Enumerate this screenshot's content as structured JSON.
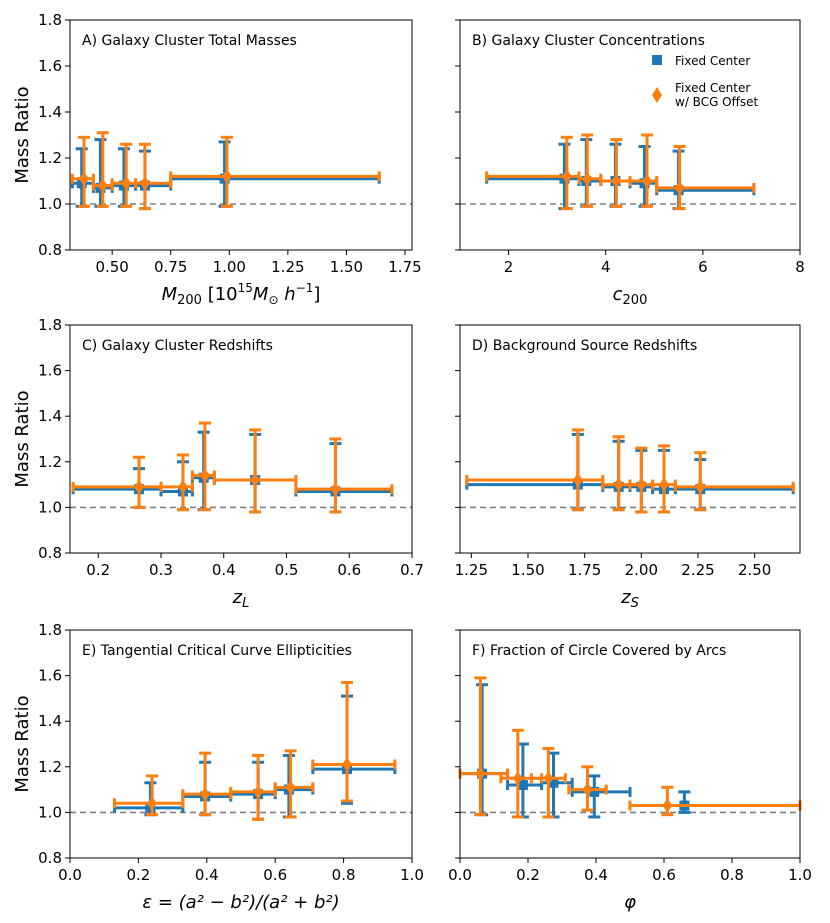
{
  "colors": {
    "fixed": "#1f77b4",
    "offset": "#ff7f0e",
    "refline": "#808080"
  },
  "legend": {
    "fixed_label": "Fixed Center",
    "offset_label_1": "Fixed Center",
    "offset_label_2": "w/ BCG Offset"
  },
  "ylabel": "Mass Ratio",
  "chart_data": [
    {
      "type": "scatter",
      "title": "A) Galaxy Cluster Total Masses",
      "xlabel_main": "M",
      "xlabel_sub": "200",
      "xlabel_rest": " [10",
      "xlim": [
        0.32,
        1.78
      ],
      "ylim": [
        0.8,
        1.8
      ],
      "xticks": [
        "0.50",
        "0.75",
        "1.00",
        "1.25",
        "1.50",
        "1.75"
      ],
      "xtick_values": [
        0.5,
        0.75,
        1.0,
        1.25,
        1.5,
        1.75
      ],
      "yticks": [
        "0.8",
        "1.0",
        "1.2",
        "1.4",
        "1.6",
        "1.8"
      ],
      "ytick_values": [
        0.8,
        1.0,
        1.2,
        1.4,
        1.6,
        1.8
      ],
      "series": [
        {
          "name": "Fixed Center",
          "points": [
            {
              "x": 0.37,
              "y": 1.09,
              "xlo": 0.33,
              "xhi": 0.42,
              "ylo": 0.99,
              "yhi": 1.24
            },
            {
              "x": 0.45,
              "y": 1.07,
              "xlo": 0.42,
              "xhi": 0.5,
              "ylo": 0.99,
              "yhi": 1.28
            },
            {
              "x": 0.55,
              "y": 1.08,
              "xlo": 0.5,
              "xhi": 0.6,
              "ylo": 0.99,
              "yhi": 1.24
            },
            {
              "x": 0.64,
              "y": 1.08,
              "xlo": 0.6,
              "xhi": 0.75,
              "ylo": 0.98,
              "yhi": 1.23
            },
            {
              "x": 0.98,
              "y": 1.11,
              "xlo": 0.75,
              "xhi": 1.64,
              "ylo": 0.99,
              "yhi": 1.27
            }
          ]
        },
        {
          "name": "Fixed Center w/ BCG Offset",
          "points": [
            {
              "x": 0.38,
              "y": 1.11,
              "xlo": 0.33,
              "xhi": 0.42,
              "ylo": 0.99,
              "yhi": 1.29
            },
            {
              "x": 0.46,
              "y": 1.08,
              "xlo": 0.42,
              "xhi": 0.5,
              "ylo": 0.99,
              "yhi": 1.31
            },
            {
              "x": 0.56,
              "y": 1.09,
              "xlo": 0.5,
              "xhi": 0.6,
              "ylo": 0.99,
              "yhi": 1.26
            },
            {
              "x": 0.64,
              "y": 1.09,
              "xlo": 0.6,
              "xhi": 0.75,
              "ylo": 0.98,
              "yhi": 1.26
            },
            {
              "x": 0.99,
              "y": 1.12,
              "xlo": 0.75,
              "xhi": 1.64,
              "ylo": 0.99,
              "yhi": 1.29
            }
          ]
        }
      ]
    },
    {
      "type": "scatter",
      "title": "B) Galaxy Cluster Concentrations",
      "xlabel_main": "c",
      "xlabel_sub": "200",
      "xlabel_rest": "",
      "xlim": [
        1.0,
        8.0
      ],
      "ylim": [
        0.8,
        1.8
      ],
      "xticks": [
        "2",
        "4",
        "6",
        "8"
      ],
      "xtick_values": [
        2,
        4,
        6,
        8
      ],
      "yticks": [],
      "ytick_values": [
        0.8,
        1.0,
        1.2,
        1.4,
        1.6,
        1.8
      ],
      "series": [
        {
          "name": "Fixed Center",
          "points": [
            {
              "x": 3.15,
              "y": 1.11,
              "xlo": 1.55,
              "xhi": 3.45,
              "ylo": 0.98,
              "yhi": 1.26
            },
            {
              "x": 3.6,
              "y": 1.1,
              "xlo": 3.45,
              "xhi": 3.9,
              "ylo": 0.99,
              "yhi": 1.28
            },
            {
              "x": 4.2,
              "y": 1.1,
              "xlo": 3.9,
              "xhi": 4.5,
              "ylo": 0.99,
              "yhi": 1.26
            },
            {
              "x": 4.8,
              "y": 1.09,
              "xlo": 4.5,
              "xhi": 5.05,
              "ylo": 0.99,
              "yhi": 1.25
            },
            {
              "x": 5.5,
              "y": 1.06,
              "xlo": 5.05,
              "xhi": 7.05,
              "ylo": 0.98,
              "yhi": 1.23
            }
          ]
        },
        {
          "name": "Fixed Center w/ BCG Offset",
          "points": [
            {
              "x": 3.2,
              "y": 1.12,
              "xlo": 1.55,
              "xhi": 3.45,
              "ylo": 0.98,
              "yhi": 1.29
            },
            {
              "x": 3.62,
              "y": 1.11,
              "xlo": 3.45,
              "xhi": 3.9,
              "ylo": 0.99,
              "yhi": 1.3
            },
            {
              "x": 4.22,
              "y": 1.1,
              "xlo": 3.9,
              "xhi": 4.5,
              "ylo": 0.99,
              "yhi": 1.28
            },
            {
              "x": 4.85,
              "y": 1.1,
              "xlo": 4.5,
              "xhi": 5.05,
              "ylo": 0.99,
              "yhi": 1.3
            },
            {
              "x": 5.52,
              "y": 1.07,
              "xlo": 5.05,
              "xhi": 7.05,
              "ylo": 0.98,
              "yhi": 1.25
            }
          ]
        }
      ]
    },
    {
      "type": "scatter",
      "title": "C) Galaxy Cluster Redshifts",
      "xlabel_main": "z",
      "xlabel_sub": "L",
      "xlabel_rest": "",
      "xlim": [
        0.155,
        0.7
      ],
      "ylim": [
        0.8,
        1.8
      ],
      "xticks": [
        "0.2",
        "0.3",
        "0.4",
        "0.5",
        "0.6",
        "0.7"
      ],
      "xtick_values": [
        0.2,
        0.3,
        0.4,
        0.5,
        0.6,
        0.7
      ],
      "yticks": [
        "0.8",
        "1.0",
        "1.2",
        "1.4",
        "1.6",
        "1.8"
      ],
      "ytick_values": [
        0.8,
        1.0,
        1.2,
        1.4,
        1.6,
        1.8
      ],
      "series": [
        {
          "name": "Fixed Center",
          "points": [
            {
              "x": 0.265,
              "y": 1.08,
              "xlo": 0.16,
              "xhi": 0.3,
              "ylo": 1.0,
              "yhi": 1.17
            },
            {
              "x": 0.335,
              "y": 1.07,
              "xlo": 0.3,
              "xhi": 0.35,
              "ylo": 0.99,
              "yhi": 1.2
            },
            {
              "x": 0.368,
              "y": 1.13,
              "xlo": 0.35,
              "xhi": 0.385,
              "ylo": 0.99,
              "yhi": 1.33
            },
            {
              "x": 0.45,
              "y": 1.12,
              "xlo": 0.385,
              "xhi": 0.515,
              "ylo": 0.98,
              "yhi": 1.32
            },
            {
              "x": 0.578,
              "y": 1.07,
              "xlo": 0.515,
              "xhi": 0.668,
              "ylo": 0.98,
              "yhi": 1.28
            }
          ]
        },
        {
          "name": "Fixed Center w/ BCG Offset",
          "points": [
            {
              "x": 0.265,
              "y": 1.09,
              "xlo": 0.16,
              "xhi": 0.3,
              "ylo": 1.0,
              "yhi": 1.22
            },
            {
              "x": 0.335,
              "y": 1.09,
              "xlo": 0.3,
              "xhi": 0.35,
              "ylo": 0.99,
              "yhi": 1.23
            },
            {
              "x": 0.37,
              "y": 1.14,
              "xlo": 0.35,
              "xhi": 0.385,
              "ylo": 0.99,
              "yhi": 1.37
            },
            {
              "x": 0.45,
              "y": 1.12,
              "xlo": 0.385,
              "xhi": 0.515,
              "ylo": 0.98,
              "yhi": 1.34
            },
            {
              "x": 0.578,
              "y": 1.08,
              "xlo": 0.515,
              "xhi": 0.668,
              "ylo": 0.98,
              "yhi": 1.3
            }
          ]
        }
      ]
    },
    {
      "type": "scatter",
      "title": "D) Background Source Redshifts",
      "xlabel_main": "z",
      "xlabel_sub": "S",
      "xlabel_rest": "",
      "xlim": [
        1.2,
        2.7
      ],
      "ylim": [
        0.8,
        1.8
      ],
      "xticks": [
        "1.25",
        "1.50",
        "1.75",
        "2.00",
        "2.25",
        "2.50"
      ],
      "xtick_values": [
        1.25,
        1.5,
        1.75,
        2.0,
        2.25,
        2.5
      ],
      "yticks": [],
      "ytick_values": [
        0.8,
        1.0,
        1.2,
        1.4,
        1.6,
        1.8
      ],
      "series": [
        {
          "name": "Fixed Center",
          "points": [
            {
              "x": 1.72,
              "y": 1.1,
              "xlo": 1.23,
              "xhi": 1.83,
              "ylo": 0.99,
              "yhi": 1.32
            },
            {
              "x": 1.9,
              "y": 1.09,
              "xlo": 1.83,
              "xhi": 1.95,
              "ylo": 0.99,
              "yhi": 1.29
            },
            {
              "x": 2.0,
              "y": 1.09,
              "xlo": 1.95,
              "xhi": 2.05,
              "ylo": 0.98,
              "yhi": 1.25
            },
            {
              "x": 2.1,
              "y": 1.08,
              "xlo": 2.05,
              "xhi": 2.15,
              "ylo": 0.98,
              "yhi": 1.25
            },
            {
              "x": 2.26,
              "y": 1.08,
              "xlo": 2.15,
              "xhi": 2.67,
              "ylo": 0.99,
              "yhi": 1.21
            }
          ]
        },
        {
          "name": "Fixed Center w/ BCG Offset",
          "points": [
            {
              "x": 1.72,
              "y": 1.12,
              "xlo": 1.23,
              "xhi": 1.83,
              "ylo": 0.99,
              "yhi": 1.34
            },
            {
              "x": 1.9,
              "y": 1.1,
              "xlo": 1.83,
              "xhi": 1.95,
              "ylo": 0.99,
              "yhi": 1.31
            },
            {
              "x": 2.0,
              "y": 1.1,
              "xlo": 1.95,
              "xhi": 2.05,
              "ylo": 0.98,
              "yhi": 1.26
            },
            {
              "x": 2.1,
              "y": 1.1,
              "xlo": 2.05,
              "xhi": 2.15,
              "ylo": 0.98,
              "yhi": 1.27
            },
            {
              "x": 2.26,
              "y": 1.09,
              "xlo": 2.15,
              "xhi": 2.67,
              "ylo": 0.99,
              "yhi": 1.24
            }
          ]
        }
      ]
    },
    {
      "type": "scatter",
      "title": "E) Tangential Critical Curve Ellipticities",
      "xlabel_main": "ε = (a² − b²)/(a² + b²)",
      "xlabel_sub": "",
      "xlabel_rest": "",
      "xlim": [
        0.0,
        1.0
      ],
      "ylim": [
        0.8,
        1.8
      ],
      "xticks": [
        "0.0",
        "0.2",
        "0.4",
        "0.6",
        "0.8",
        "1.0"
      ],
      "xtick_values": [
        0.0,
        0.2,
        0.4,
        0.6,
        0.8,
        1.0
      ],
      "yticks": [
        "0.8",
        "1.0",
        "1.2",
        "1.4",
        "1.6",
        "1.8"
      ],
      "ytick_values": [
        0.8,
        1.0,
        1.2,
        1.4,
        1.6,
        1.8
      ],
      "series": [
        {
          "name": "Fixed Center",
          "points": [
            {
              "x": 0.235,
              "y": 1.02,
              "xlo": 0.13,
              "xhi": 0.33,
              "ylo": 0.99,
              "yhi": 1.13
            },
            {
              "x": 0.395,
              "y": 1.07,
              "xlo": 0.33,
              "xhi": 0.47,
              "ylo": 0.99,
              "yhi": 1.22
            },
            {
              "x": 0.55,
              "y": 1.08,
              "xlo": 0.47,
              "xhi": 0.6,
              "ylo": 0.97,
              "yhi": 1.22
            },
            {
              "x": 0.64,
              "y": 1.1,
              "xlo": 0.6,
              "xhi": 0.71,
              "ylo": 0.98,
              "yhi": 1.25
            },
            {
              "x": 0.81,
              "y": 1.19,
              "xlo": 0.71,
              "xhi": 0.95,
              "ylo": 1.04,
              "yhi": 1.51
            }
          ]
        },
        {
          "name": "Fixed Center w/ BCG Offset",
          "points": [
            {
              "x": 0.24,
              "y": 1.04,
              "xlo": 0.13,
              "xhi": 0.33,
              "ylo": 0.99,
              "yhi": 1.16
            },
            {
              "x": 0.395,
              "y": 1.08,
              "xlo": 0.33,
              "xhi": 0.47,
              "ylo": 0.99,
              "yhi": 1.26
            },
            {
              "x": 0.55,
              "y": 1.09,
              "xlo": 0.47,
              "xhi": 0.6,
              "ylo": 0.97,
              "yhi": 1.25
            },
            {
              "x": 0.645,
              "y": 1.11,
              "xlo": 0.6,
              "xhi": 0.71,
              "ylo": 0.98,
              "yhi": 1.27
            },
            {
              "x": 0.81,
              "y": 1.21,
              "xlo": 0.71,
              "xhi": 0.95,
              "ylo": 1.05,
              "yhi": 1.57
            }
          ]
        }
      ]
    },
    {
      "type": "scatter",
      "title": "F) Fraction of Circle Covered by Arcs",
      "xlabel_main": "φ",
      "xlabel_sub": "",
      "xlabel_rest": "",
      "xlim": [
        0.0,
        1.0
      ],
      "ylim": [
        0.8,
        1.8
      ],
      "xticks": [
        "0.0",
        "0.2",
        "0.4",
        "0.6",
        "0.8",
        "1.0"
      ],
      "xtick_values": [
        0.0,
        0.2,
        0.4,
        0.6,
        0.8,
        1.0
      ],
      "yticks": [],
      "ytick_values": [
        0.8,
        1.0,
        1.2,
        1.4,
        1.6,
        1.8
      ],
      "series": [
        {
          "name": "Fixed Center",
          "points": [
            {
              "x": 0.065,
              "y": 1.17,
              "xlo": 0.0,
              "xhi": 0.14,
              "ylo": 0.99,
              "yhi": 1.56
            },
            {
              "x": 0.185,
              "y": 1.12,
              "xlo": 0.14,
              "xhi": 0.24,
              "ylo": 0.98,
              "yhi": 1.3
            },
            {
              "x": 0.275,
              "y": 1.13,
              "xlo": 0.24,
              "xhi": 0.33,
              "ylo": 0.98,
              "yhi": 1.26
            },
            {
              "x": 0.395,
              "y": 1.09,
              "xlo": 0.33,
              "xhi": 0.5,
              "ylo": 0.98,
              "yhi": 1.16
            },
            {
              "x": 0.66,
              "y": 1.03,
              "xlo": 0.5,
              "xhi": 1.0,
              "ylo": 1.0,
              "yhi": 1.09
            }
          ]
        },
        {
          "name": "Fixed Center w/ BCG Offset",
          "points": [
            {
              "x": 0.06,
              "y": 1.17,
              "xlo": 0.0,
              "xhi": 0.14,
              "ylo": 0.99,
              "yhi": 1.59
            },
            {
              "x": 0.17,
              "y": 1.15,
              "xlo": 0.12,
              "xhi": 0.24,
              "ylo": 0.98,
              "yhi": 1.36
            },
            {
              "x": 0.26,
              "y": 1.15,
              "xlo": 0.21,
              "xhi": 0.31,
              "ylo": 0.98,
              "yhi": 1.28
            },
            {
              "x": 0.375,
              "y": 1.1,
              "xlo": 0.32,
              "xhi": 0.43,
              "ylo": 1.01,
              "yhi": 1.2
            },
            {
              "x": 0.61,
              "y": 1.03,
              "xlo": 0.5,
              "xhi": 1.0,
              "ylo": 0.99,
              "yhi": 1.11
            }
          ]
        }
      ]
    }
  ]
}
